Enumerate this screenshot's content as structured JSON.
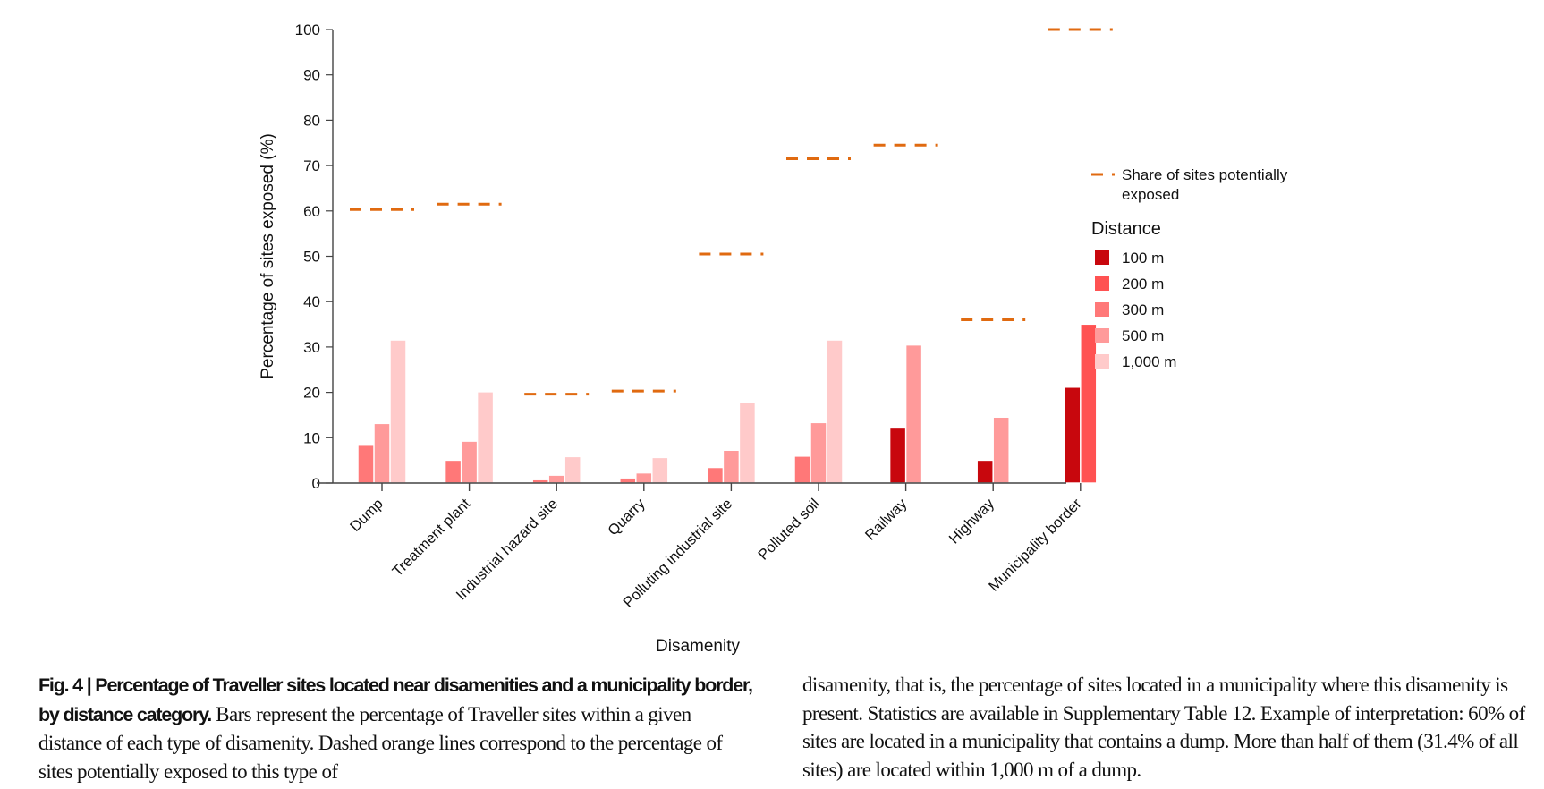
{
  "chart_data": {
    "type": "bar",
    "title": "",
    "xlabel": "Disamenity",
    "ylabel": "Percentage of sites exposed (%)",
    "ylim": [
      0,
      100
    ],
    "yticks": [
      0,
      10,
      20,
      30,
      40,
      50,
      60,
      70,
      80,
      90,
      100
    ],
    "grid": false,
    "categories": [
      "Dump",
      "Treatment plant",
      "Industrial hazard site",
      "Quarry",
      "Polluting industrial site",
      "Polluted soil",
      "Railway",
      "Highway",
      "Municipality border"
    ],
    "series": [
      {
        "name": "100 m",
        "color": "#c8070d",
        "values": [
          null,
          null,
          null,
          null,
          null,
          null,
          12.0,
          4.9,
          21.0
        ]
      },
      {
        "name": "200 m",
        "color": "#ff5252",
        "values": [
          null,
          null,
          null,
          null,
          null,
          null,
          null,
          null,
          34.9
        ]
      },
      {
        "name": "300 m",
        "color": "#ff7878",
        "values": [
          8.2,
          4.9,
          0.6,
          1.0,
          3.3,
          5.8,
          null,
          null,
          null
        ]
      },
      {
        "name": "500 m",
        "color": "#ff9a9a",
        "values": [
          13.0,
          9.1,
          1.6,
          2.1,
          7.1,
          13.2,
          30.3,
          14.4,
          null
        ]
      },
      {
        "name": "1,000 m",
        "color": "#ffcaca",
        "values": [
          31.4,
          20.0,
          5.7,
          5.5,
          17.7,
          31.4,
          null,
          null,
          null
        ]
      }
    ],
    "reference_lines": {
      "name": "Share of sites potentially exposed",
      "style": "dashed",
      "color": "#e06a10",
      "values": [
        60.3,
        61.5,
        19.6,
        20.3,
        50.5,
        71.5,
        74.5,
        36.0,
        100.0
      ]
    },
    "legend": {
      "placement": "right",
      "line_label": "Share of sites potentially exposed",
      "title": "Distance",
      "items": [
        "100 m",
        "200 m",
        "300 m",
        "500 m",
        "1,000 m"
      ]
    }
  },
  "caption": {
    "bold": "Fig. 4 | Percentage of Traveller sites located near disamenities and a municipality border, by distance category.",
    "left_text": " Bars represent the percentage of Traveller sites within a given distance of each type of disamenity. Dashed orange lines correspond to the percentage of sites potentially exposed to this type of",
    "right_text": "disamenity, that is, the percentage of sites located in a municipality where this disamenity is present. Statistics are available in Supplementary Table 12. Example of interpretation: 60% of sites are located in a municipality that contains a dump. More than half of them (31.4% of all sites) are located within 1,000 m of a dump."
  }
}
